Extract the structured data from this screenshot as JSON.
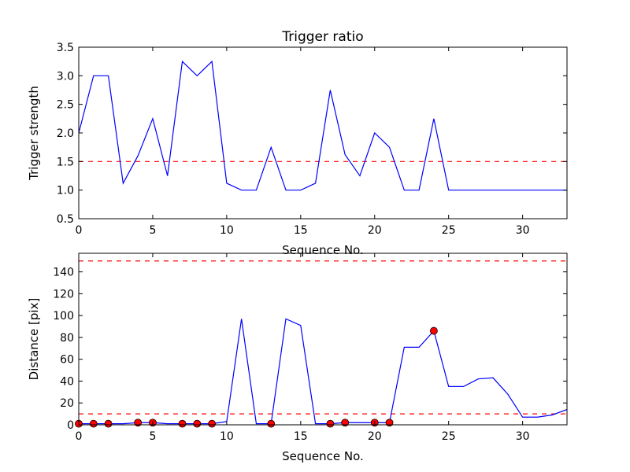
{
  "chart_data": [
    {
      "type": "line",
      "title": "Trigger ratio",
      "xlabel": "Sequence No.",
      "ylabel": "Trigger strength",
      "xlim": [
        0,
        33
      ],
      "ylim": [
        0.5,
        3.5
      ],
      "xticks": [
        "0",
        "5",
        "10",
        "15",
        "20",
        "25",
        "30"
      ],
      "yticks": [
        "0.5",
        "1.0",
        "1.5",
        "2.0",
        "2.5",
        "3.0",
        "3.5"
      ],
      "grid": false,
      "line_color": "#0000ff",
      "threshold_color": "#ff0000",
      "thresholds": [
        1.5
      ],
      "series": [
        {
          "x": [
            0,
            1,
            2,
            3,
            4,
            5,
            6,
            7,
            8,
            9,
            10,
            11,
            12,
            13,
            14,
            15,
            16,
            17,
            18,
            19,
            20,
            21,
            22,
            23,
            24,
            25,
            26,
            27,
            28,
            29,
            30,
            31,
            32,
            33
          ],
          "values": [
            2.0,
            3.0,
            3.0,
            1.12,
            1.6,
            2.25,
            1.25,
            3.25,
            3.0,
            3.25,
            1.12,
            1.0,
            1.0,
            1.75,
            1.0,
            1.0,
            1.12,
            2.75,
            1.62,
            1.25,
            2.0,
            1.75,
            1.0,
            1.0,
            2.25,
            1.0,
            1.0,
            1.0,
            1.0,
            1.0,
            1.0,
            1.0,
            1.0,
            1.0
          ]
        }
      ]
    },
    {
      "type": "line",
      "title": "",
      "xlabel": "Sequence No.",
      "ylabel": "Distance [pix]",
      "xlim": [
        0,
        33
      ],
      "ylim": [
        0,
        157
      ],
      "xticks": [
        "0",
        "5",
        "10",
        "15",
        "20",
        "25",
        "30"
      ],
      "yticks": [
        "0",
        "20",
        "40",
        "60",
        "80",
        "100",
        "120",
        "140"
      ],
      "grid": false,
      "line_color": "#0000ff",
      "threshold_color": "#ff0000",
      "marker_color": "#ff0000",
      "thresholds": [
        10,
        150
      ],
      "series": [
        {
          "x": [
            0,
            1,
            2,
            3,
            4,
            5,
            6,
            7,
            8,
            9,
            10,
            11,
            12,
            13,
            14,
            15,
            16,
            17,
            18,
            19,
            20,
            21,
            22,
            23,
            24,
            25,
            26,
            27,
            28,
            29,
            30,
            31,
            32,
            33
          ],
          "values": [
            1,
            1,
            1,
            1,
            2,
            2,
            1,
            1,
            1,
            1,
            3,
            97,
            1,
            1,
            97,
            91,
            1,
            1,
            2,
            2,
            2,
            2,
            71,
            71,
            86,
            35,
            35,
            42,
            43,
            28,
            7,
            7,
            9,
            14
          ]
        }
      ],
      "markers": {
        "x": [
          0,
          1,
          2,
          4,
          5,
          7,
          8,
          9,
          13,
          17,
          18,
          20,
          21,
          24
        ],
        "values": [
          1,
          1,
          1,
          2,
          2,
          1,
          1,
          1,
          1,
          1,
          2,
          2,
          2,
          86
        ]
      }
    }
  ]
}
